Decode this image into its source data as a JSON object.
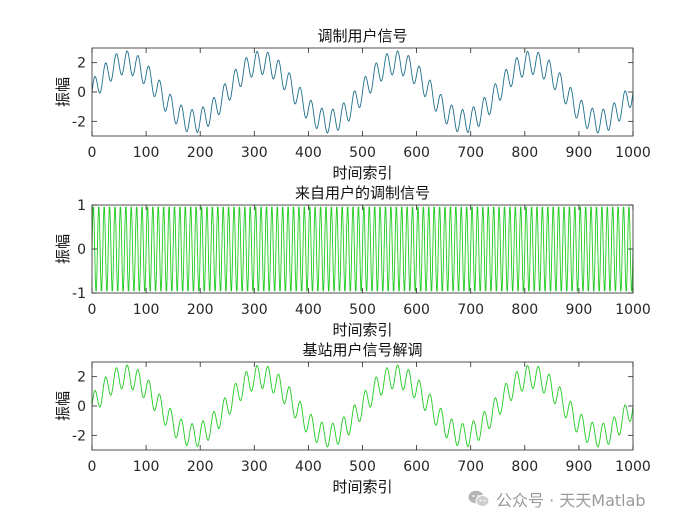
{
  "chart_data": [
    {
      "type": "line",
      "title": "调制用户信号",
      "xlabel": "时间索引",
      "ylabel": "振幅",
      "xlim": [
        0,
        1000
      ],
      "ylim": [
        -3,
        3
      ],
      "xticks": [
        "0",
        "100",
        "200",
        "300",
        "400",
        "500",
        "600",
        "700",
        "800",
        "900",
        "1000"
      ],
      "yticks": [
        "-2",
        "0",
        "2"
      ],
      "ytick_values": [
        -2,
        0,
        2
      ],
      "color": "#1f6f8b",
      "grid": false,
      "signal": {
        "components": [
          {
            "amplitude": 2.0,
            "period": 250
          },
          {
            "amplitude": 0.8,
            "period": 20
          }
        ],
        "x_start": 0,
        "x_end": 1000,
        "x_step": 1
      }
    },
    {
      "type": "line",
      "title": "来自用户的调制信号",
      "xlabel": "时间索引",
      "ylabel": "振幅",
      "xlim": [
        0,
        1000
      ],
      "ylim": [
        -1,
        1
      ],
      "xticks": [
        "0",
        "100",
        "200",
        "300",
        "400",
        "500",
        "600",
        "700",
        "800",
        "900",
        "1000"
      ],
      "yticks": [
        "-1",
        "0",
        "1"
      ],
      "ytick_values": [
        -1,
        0,
        1
      ],
      "color": "#22cc22",
      "grid": false,
      "signal": {
        "components": [
          {
            "amplitude": 1.0,
            "period": 10
          }
        ],
        "x_start": 0,
        "x_end": 1000,
        "x_step": 1
      }
    },
    {
      "type": "line",
      "title": "基站用户信号解调",
      "xlabel": "时间索引",
      "ylabel": "振幅",
      "xlim": [
        0,
        1000
      ],
      "ylim": [
        -3,
        3
      ],
      "xticks": [
        "0",
        "100",
        "200",
        "300",
        "400",
        "500",
        "600",
        "700",
        "800",
        "900",
        "1000"
      ],
      "yticks": [
        "-2",
        "0",
        "2"
      ],
      "ytick_values": [
        -2,
        0,
        2
      ],
      "color": "#22cc22",
      "grid": false,
      "signal": {
        "components": [
          {
            "amplitude": 2.0,
            "period": 250
          },
          {
            "amplitude": 0.8,
            "period": 20
          }
        ],
        "x_start": 0,
        "x_end": 1000,
        "x_step": 1
      }
    }
  ],
  "watermark": {
    "text": "公众号 · 天天Matlab",
    "icon": "wechat-icon"
  }
}
